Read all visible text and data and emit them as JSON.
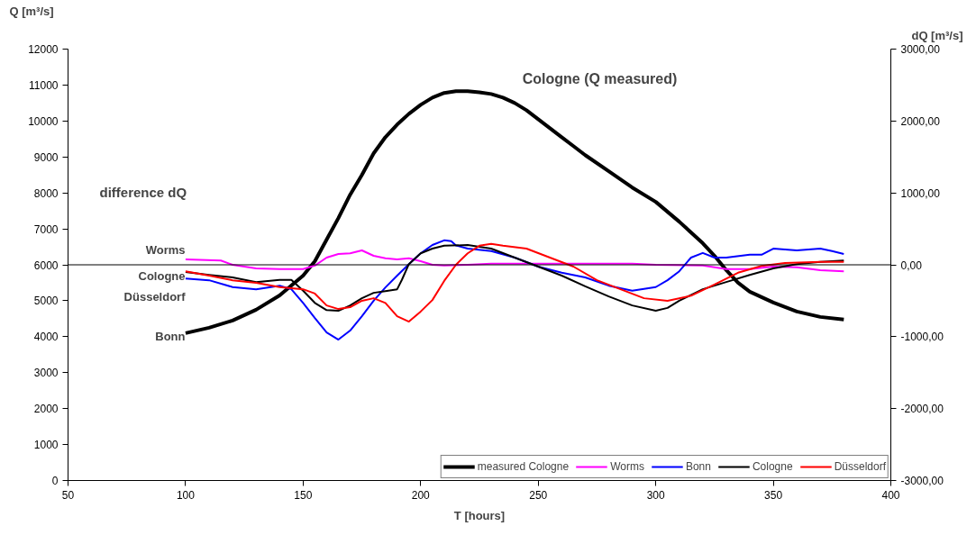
{
  "chart_data": {
    "type": "line",
    "xlabel": "T [hours]",
    "ylabel": "Q [m³/s]",
    "y2label": "dQ [m³/s]",
    "xlim": [
      50,
      400
    ],
    "xticks": [
      50,
      100,
      150,
      200,
      250,
      300,
      350,
      400
    ],
    "ylim": [
      0,
      12000
    ],
    "yticks": [
      0,
      1000,
      2000,
      3000,
      4000,
      5000,
      6000,
      7000,
      8000,
      9000,
      10000,
      11000,
      12000
    ],
    "y2lim": [
      -3000,
      3000
    ],
    "y2ticks": [
      {
        "value": -3000,
        "label": "-3000,00"
      },
      {
        "value": -2000,
        "label": "-2000,00"
      },
      {
        "value": -1000,
        "label": "-1000,00"
      },
      {
        "value": 0,
        "label": "0,00"
      },
      {
        "value": 1000,
        "label": "1000,00"
      },
      {
        "value": 2000,
        "label": "2000,00"
      },
      {
        "value": 3000,
        "label": "3000,00"
      }
    ],
    "grid": false,
    "legend": "bottom right",
    "marker": "none",
    "line_style": "solid",
    "ref_lines": [
      {
        "axis": "y2",
        "value": 0,
        "label": null,
        "color": "#000000"
      }
    ],
    "annotations": [
      "Cologne (Q measured)",
      "difference dQ",
      "Worms",
      "Cologne",
      "Düsseldorf",
      "Bonn"
    ],
    "series": [
      {
        "name": "measured Cologne",
        "color": "#000000",
        "x": [
          100,
          110,
          120,
          130,
          140,
          150,
          155,
          160,
          165,
          170,
          175,
          180,
          185,
          190,
          195,
          200,
          205,
          210,
          215,
          220,
          225,
          230,
          235,
          240,
          245,
          250,
          255,
          260,
          265,
          270,
          280,
          290,
          300,
          310,
          320,
          325,
          330,
          335,
          340,
          350,
          360,
          370,
          380
        ],
        "values": [
          4100,
          4250,
          4450,
          4750,
          5150,
          5700,
          6100,
          6700,
          7300,
          7950,
          8500,
          9100,
          9550,
          9900,
          10200,
          10450,
          10650,
          10780,
          10830,
          10830,
          10800,
          10750,
          10650,
          10500,
          10300,
          10050,
          9800,
          9550,
          9300,
          9050,
          8600,
          8150,
          7750,
          7200,
          6600,
          6250,
          5850,
          5500,
          5250,
          4950,
          4700,
          4550,
          4480
        ]
      },
      {
        "name": "Worms",
        "color": "#ff00ff",
        "axis": "y2",
        "x": [
          100,
          115,
          120,
          130,
          140,
          150,
          155,
          160,
          165,
          170,
          175,
          180,
          185,
          190,
          195,
          200,
          205,
          210,
          220,
          230,
          250,
          270,
          290,
          300,
          320,
          330,
          340,
          350,
          360,
          370,
          380
        ],
        "values": [
          75,
          60,
          0,
          -50,
          -60,
          -60,
          -10,
          100,
          150,
          160,
          200,
          125,
          90,
          75,
          90,
          50,
          0,
          -10,
          0,
          15,
          15,
          15,
          15,
          0,
          -10,
          -60,
          -60,
          -25,
          -35,
          -75,
          -90
        ]
      },
      {
        "name": "Bonn",
        "color": "#0000ff",
        "axis": "y2",
        "x": [
          100,
          110,
          120,
          130,
          140,
          145,
          150,
          155,
          160,
          165,
          170,
          175,
          180,
          185,
          190,
          195,
          200,
          205,
          210,
          213,
          215,
          220,
          230,
          240,
          250,
          260,
          270,
          280,
          290,
          300,
          305,
          310,
          315,
          320,
          325,
          330,
          340,
          345,
          350,
          360,
          370,
          375,
          380
        ],
        "values": [
          -190,
          -215,
          -310,
          -340,
          -290,
          -340,
          -530,
          -740,
          -940,
          -1040,
          -915,
          -715,
          -500,
          -315,
          -150,
          10,
          160,
          275,
          340,
          330,
          270,
          225,
          190,
          100,
          -25,
          -110,
          -175,
          -290,
          -360,
          -310,
          -215,
          -90,
          100,
          165,
          100,
          100,
          140,
          140,
          225,
          200,
          225,
          190,
          150
        ]
      },
      {
        "name": "Cologne",
        "color": "#000000",
        "axis": "y2",
        "x": [
          100,
          110,
          120,
          130,
          140,
          145,
          150,
          155,
          160,
          165,
          170,
          175,
          180,
          185,
          190,
          192,
          195,
          200,
          205,
          210,
          220,
          230,
          240,
          250,
          260,
          270,
          280,
          290,
          300,
          305,
          310,
          320,
          330,
          340,
          350,
          360,
          370,
          380
        ],
        "values": [
          -100,
          -140,
          -175,
          -240,
          -210,
          -210,
          -360,
          -530,
          -630,
          -640,
          -565,
          -465,
          -390,
          -365,
          -340,
          -210,
          10,
          160,
          225,
          265,
          275,
          225,
          100,
          -25,
          -150,
          -300,
          -440,
          -565,
          -640,
          -600,
          -500,
          -340,
          -240,
          -140,
          -50,
          10,
          40,
          60
        ]
      },
      {
        "name": "Düsseldorf",
        "color": "#ff0000",
        "axis": "y2",
        "x": [
          100,
          110,
          120,
          130,
          140,
          150,
          155,
          160,
          165,
          170,
          175,
          180,
          185,
          190,
          195,
          200,
          205,
          210,
          215,
          220,
          225,
          230,
          235,
          245,
          255,
          265,
          275,
          285,
          295,
          305,
          315,
          325,
          335,
          345,
          355,
          370,
          380
        ],
        "values": [
          -90,
          -150,
          -215,
          -250,
          -310,
          -340,
          -400,
          -565,
          -615,
          -590,
          -500,
          -465,
          -530,
          -715,
          -790,
          -650,
          -490,
          -225,
          0,
          160,
          265,
          290,
          265,
          225,
          100,
          -25,
          -215,
          -340,
          -465,
          -500,
          -430,
          -275,
          -110,
          -15,
          25,
          40,
          40
        ]
      }
    ]
  }
}
